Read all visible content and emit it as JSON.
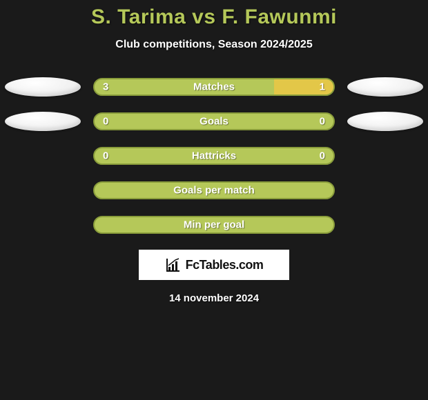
{
  "title": "S. Tarima vs F. Fawunmi",
  "subtitle": "Club competitions, Season 2024/2025",
  "date": "14 november 2024",
  "logo_text": "FcTables.com",
  "colors": {
    "background": "#1a1a1a",
    "accent": "#b5c859",
    "bar_bg": "#b5c859",
    "bar_border": "#8a9d3b",
    "bar_highlight": "#e3c748",
    "oval": "#ffffff",
    "text": "#ffffff"
  },
  "bars": [
    {
      "left": "3",
      "center": "Matches",
      "right": "1",
      "right_fill_pct": 25,
      "show_left_oval": true,
      "show_right_oval": true,
      "show_left_val": true,
      "show_right_val": true
    },
    {
      "left": "0",
      "center": "Goals",
      "right": "0",
      "right_fill_pct": 0,
      "show_left_oval": true,
      "show_right_oval": true,
      "show_left_val": true,
      "show_right_val": true
    },
    {
      "left": "0",
      "center": "Hattricks",
      "right": "0",
      "right_fill_pct": 0,
      "show_left_oval": false,
      "show_right_oval": false,
      "show_left_val": true,
      "show_right_val": true
    },
    {
      "left": "",
      "center": "Goals per match",
      "right": "",
      "right_fill_pct": 0,
      "show_left_oval": false,
      "show_right_oval": false,
      "show_left_val": false,
      "show_right_val": false
    },
    {
      "left": "",
      "center": "Min per goal",
      "right": "",
      "right_fill_pct": 0,
      "show_left_oval": false,
      "show_right_oval": false,
      "show_left_val": false,
      "show_right_val": false
    }
  ]
}
